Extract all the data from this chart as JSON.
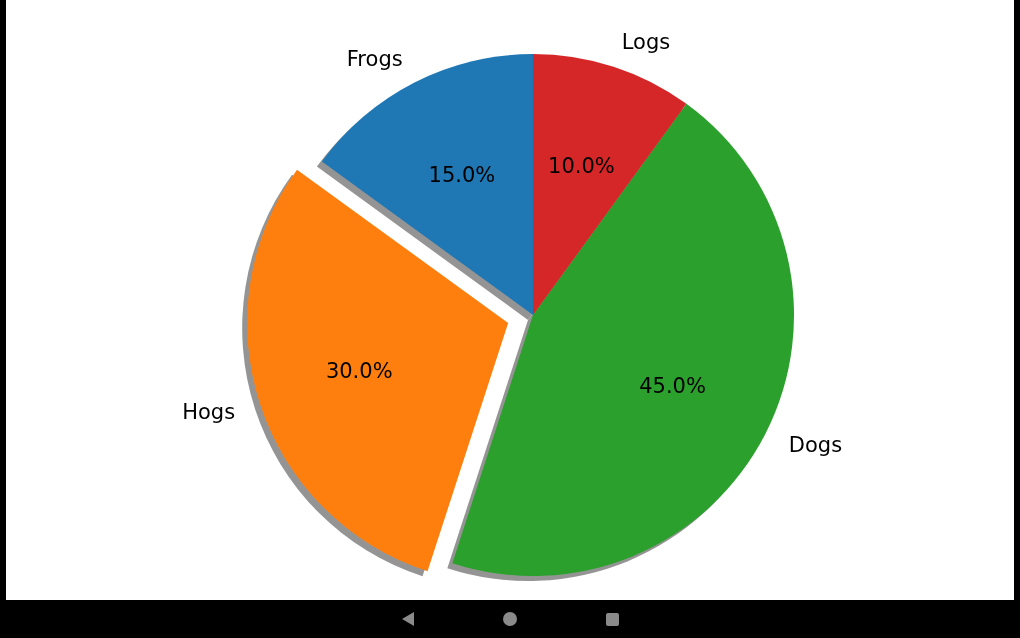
{
  "chart_data": {
    "type": "pie",
    "categories": [
      "Frogs",
      "Hogs",
      "Dogs",
      "Logs"
    ],
    "values": [
      15,
      30,
      45,
      10
    ],
    "colors": [
      "#1f77b4",
      "#ff7f0e",
      "#2ca02c",
      "#d62728"
    ],
    "value_labels": [
      "15.0%",
      "30.0%",
      "45.0%",
      "10.0%"
    ]
  }
}
